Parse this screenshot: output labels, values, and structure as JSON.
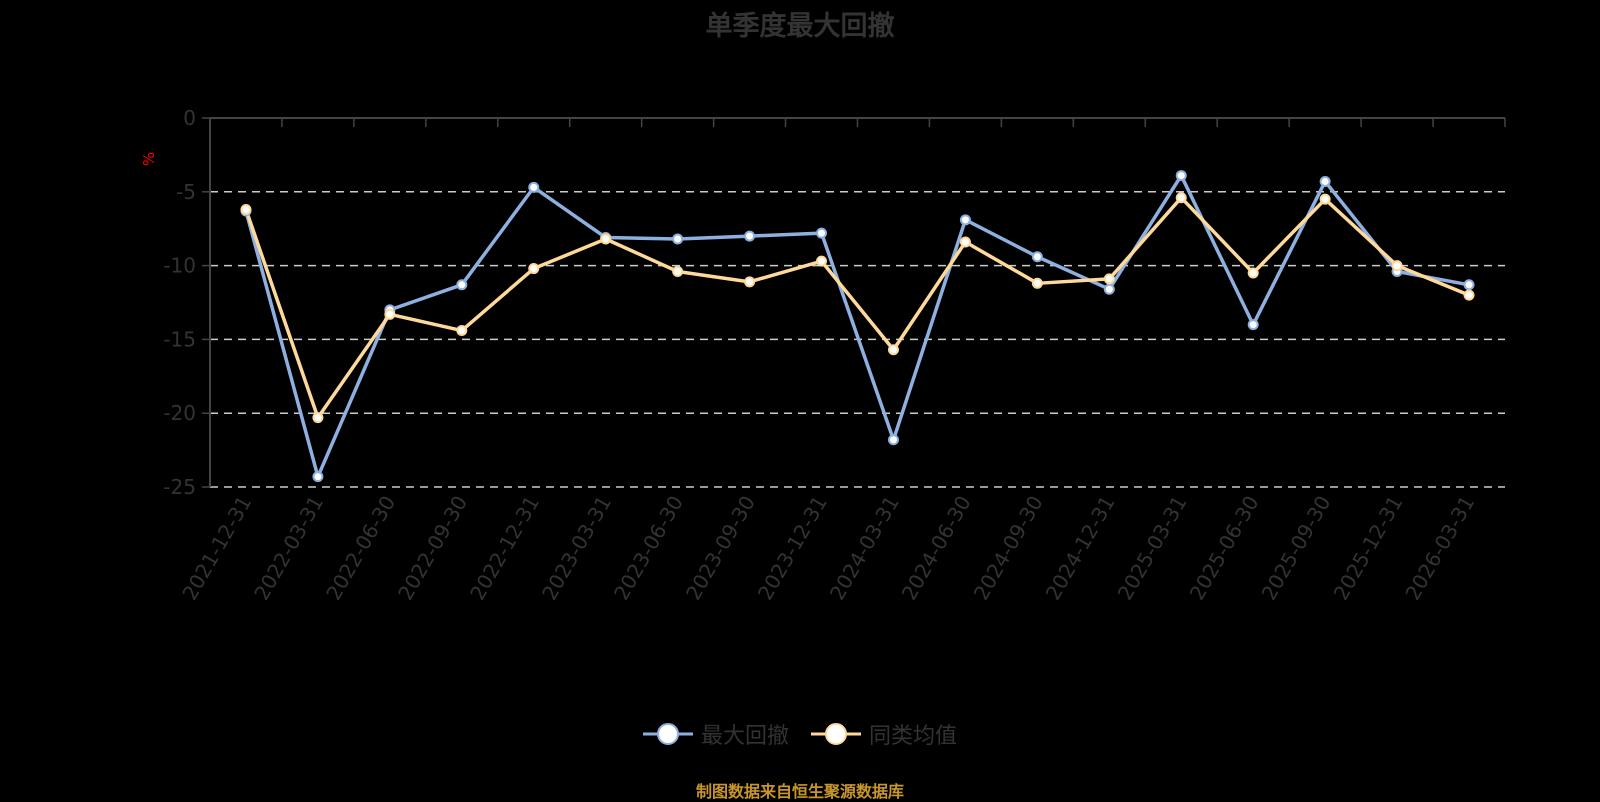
{
  "title": "单季度最大回撤",
  "unit_label": "%",
  "legend": [
    {
      "name": "最大回撤",
      "color": "#8eb0e0"
    },
    {
      "name": "同类均值",
      "color": "#ffd99a"
    }
  ],
  "source": "制图数据来自恒生聚源数据库",
  "chart_data": {
    "type": "line",
    "title": "单季度最大回撤",
    "xlabel": "",
    "ylabel": "%",
    "ylim": [
      -25,
      0
    ],
    "yticks": [
      0,
      -5,
      -10,
      -15,
      -20,
      -25
    ],
    "grid": "horizontal dashed",
    "legend_position": "bottom",
    "categories": [
      "2021-12-31",
      "2022-03-31",
      "2022-06-30",
      "2022-09-30",
      "2022-12-31",
      "2023-03-31",
      "2023-06-30",
      "2023-09-30",
      "2023-12-31",
      "2024-03-31",
      "2024-06-30",
      "2024-09-30",
      "2024-12-31",
      "2025-03-31",
      "2025-06-30",
      "2025-09-30",
      "2025-12-31",
      "2026-03-31"
    ],
    "series": [
      {
        "name": "最大回撤",
        "color": "#8eb0e0",
        "values": [
          -6.3,
          -24.3,
          -13.0,
          -11.3,
          -4.7,
          -8.1,
          -8.2,
          -8.0,
          -7.8,
          -21.8,
          -6.9,
          -9.4,
          -11.6,
          -3.9,
          -14.0,
          -4.3,
          -10.4,
          -11.3
        ]
      },
      {
        "name": "同类均值",
        "color": "#ffd99a",
        "values": [
          -6.2,
          -20.3,
          -13.3,
          -14.4,
          -10.2,
          -8.2,
          -10.4,
          -11.1,
          -9.7,
          -15.7,
          -8.4,
          -11.2,
          -10.9,
          -5.4,
          -10.5,
          -5.5,
          -10.0,
          -12.0
        ]
      }
    ]
  }
}
